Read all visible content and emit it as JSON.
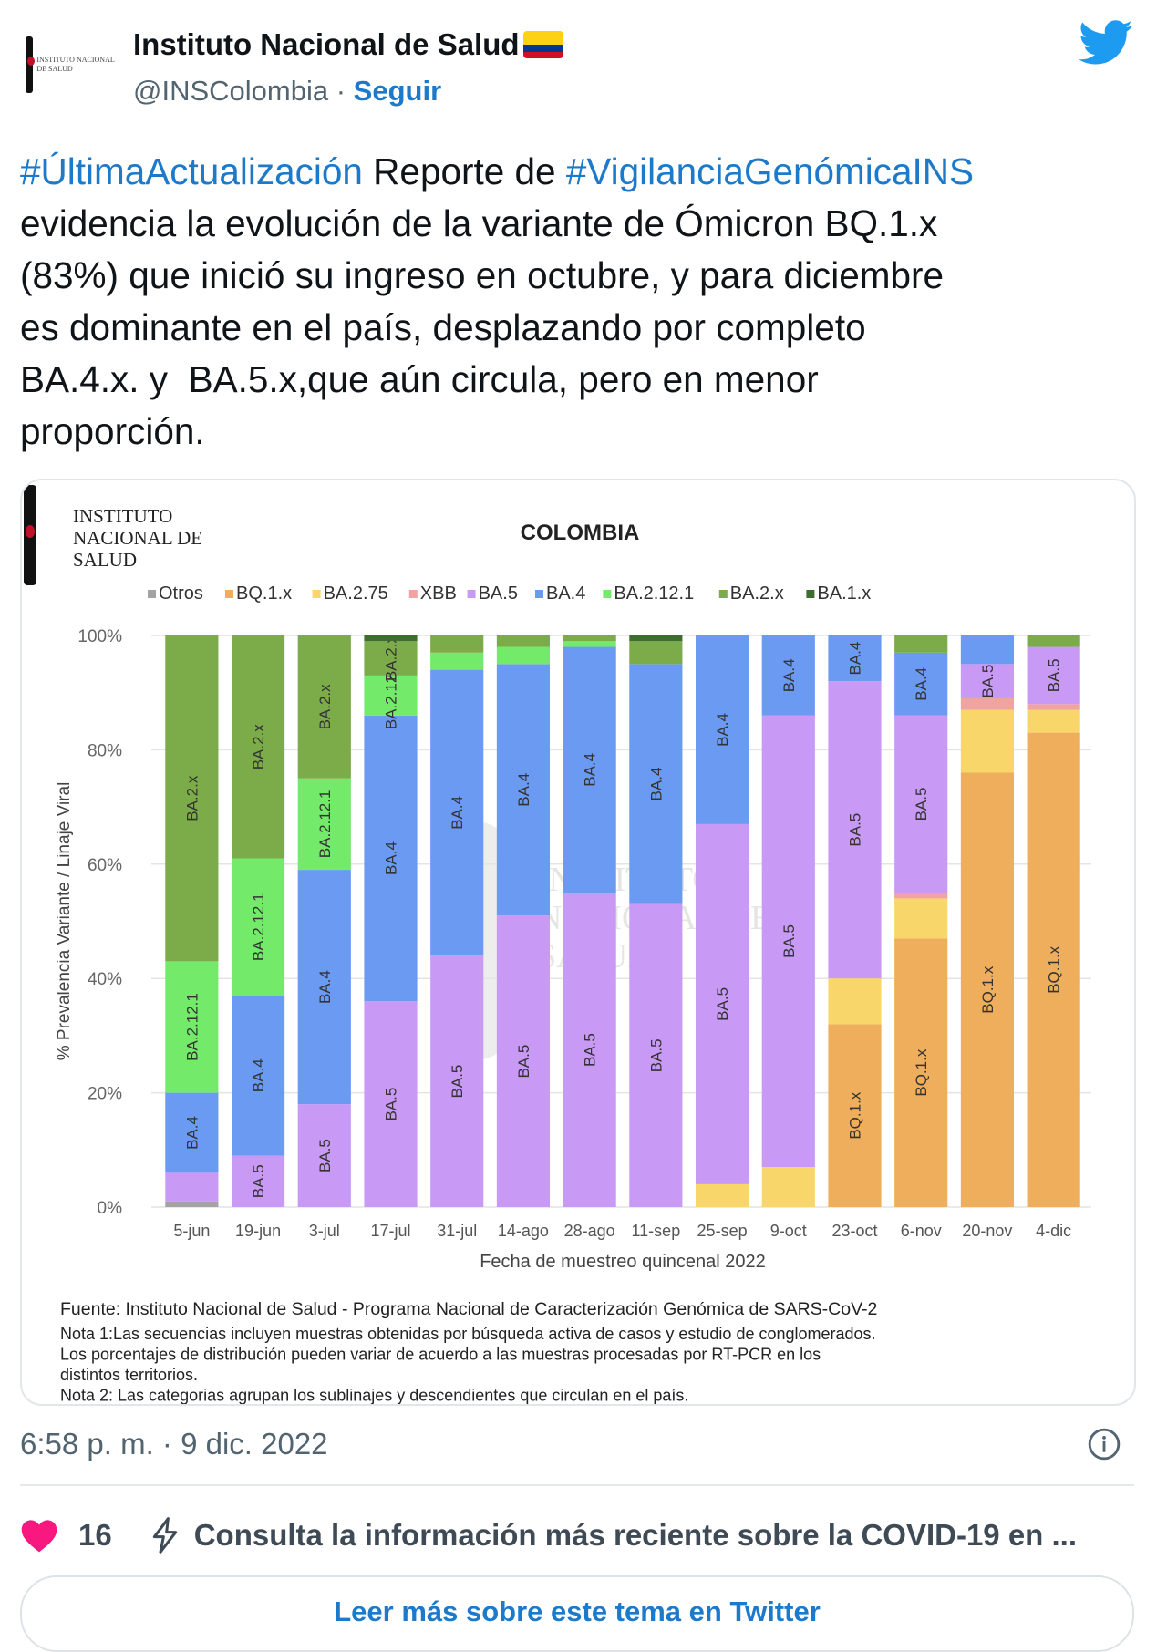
{
  "author": {
    "name": "Instituto Nacional de Salud",
    "handle": "@INSColombia",
    "separator": "·",
    "follow_label": "Seguir",
    "avatar_text": "INSTITUTO NACIONAL DE SALUD"
  },
  "tweet": {
    "lines": [
      [
        {
          "t": "#ÚltimaActualización",
          "h": true
        },
        {
          "t": " Reporte de ",
          "h": false
        },
        {
          "t": "#VigilanciaGenómicaINS",
          "h": true
        }
      ],
      [
        {
          "t": "evidencia la evolución de la variante de Ómicron BQ.1.x",
          "h": false
        }
      ],
      [
        {
          "t": "(83%) que inició su ingreso en octubre, y para diciembre",
          "h": false
        }
      ],
      [
        {
          "t": "es dominante en el país, desplazando por completo",
          "h": false
        }
      ],
      [
        {
          "t": "BA.4.x. y  BA.5.x,que aún circula, pero en menor",
          "h": false
        }
      ],
      [
        {
          "t": "proporción.",
          "h": false
        }
      ]
    ],
    "hashtag_color": "#1d79c9"
  },
  "chart_data": {
    "type": "bar",
    "stacked": true,
    "title": "COLOMBIA",
    "logo_text": [
      "INSTITUTO",
      "NACIONAL DE",
      "SALUD"
    ],
    "watermark_text": [
      "INSTITUTO",
      "NACIONAL DE",
      "SALUD"
    ],
    "xlabel": "Fecha de muestreo quincenal 2022",
    "ylabel": "% Prevalencia Variante / Linaje Viral",
    "ylim": [
      0,
      100
    ],
    "yticks": [
      "0%",
      "20%",
      "40%",
      "60%",
      "80%",
      "100%"
    ],
    "grid": true,
    "legend_position": "top",
    "categories": [
      "5-jun",
      "19-jun",
      "3-jul",
      "17-jul",
      "31-jul",
      "14-ago",
      "28-ago",
      "11-sep",
      "25-sep",
      "9-oct",
      "23-oct",
      "6-nov",
      "20-nov",
      "4-dic"
    ],
    "series": [
      {
        "name": "Otros",
        "color": "#a3a3a3",
        "values": [
          1,
          0,
          0,
          0,
          0,
          0,
          0,
          0,
          0,
          0,
          0,
          0,
          0,
          0
        ]
      },
      {
        "name": "BQ.1.x",
        "color": "#eeae5c",
        "values": [
          0,
          0,
          0,
          0,
          0,
          0,
          0,
          0,
          0,
          0,
          32,
          47,
          76,
          83
        ]
      },
      {
        "name": "BA.2.75",
        "color": "#f8d66a",
        "values": [
          0,
          0,
          0,
          0,
          0,
          0,
          0,
          0,
          4,
          7,
          8,
          7,
          11,
          4
        ]
      },
      {
        "name": "XBB",
        "color": "#f0a3a3",
        "values": [
          0,
          0,
          0,
          0,
          0,
          0,
          0,
          0,
          0,
          0,
          0,
          1,
          2,
          1
        ]
      },
      {
        "name": "BA.5",
        "color": "#c99af5",
        "values": [
          5,
          9,
          18,
          36,
          44,
          51,
          55,
          53,
          63,
          79,
          52,
          31,
          6,
          10
        ]
      },
      {
        "name": "BA.4",
        "color": "#6b9af2",
        "values": [
          14,
          28,
          41,
          50,
          50,
          44,
          43,
          42,
          33,
          14,
          8,
          11,
          5,
          0
        ]
      },
      {
        "name": "BA.2.12.1",
        "color": "#74ea6a",
        "values": [
          23,
          24,
          16,
          7,
          3,
          3,
          1,
          0,
          0,
          0,
          0,
          0,
          0,
          0
        ]
      },
      {
        "name": "BA.2.x",
        "color": "#7cac4a",
        "values": [
          57,
          39,
          25,
          6,
          3,
          2,
          1,
          4,
          0,
          0,
          0,
          3,
          0,
          2
        ]
      },
      {
        "name": "BA.1.x",
        "color": "#3e6e2e",
        "values": [
          0,
          0,
          0,
          1,
          0,
          0,
          0,
          1,
          0,
          0,
          0,
          0,
          0,
          0
        ]
      }
    ],
    "source": "Fuente: Instituto Nacional de Salud - Programa Nacional de Caracterización Genómica de SARS-CoV-2",
    "notes": [
      "Nota 1:Las secuencias incluyen muestras obtenidas por búsqueda activa de casos y estudio de conglomerados.",
      "Los porcentajes de distribución pueden variar de acuerdo a las muestras procesadas por RT-PCR en los",
      "distintos territorios.",
      "Nota 2: Las categorias agrupan los sublinajes y descendientes que circulan en el país."
    ]
  },
  "footer": {
    "timestamp": "6:58 p. m. · 9 dic. 2022",
    "like_count": "16",
    "covid_info": "Consulta la información más reciente sobre la COVID-19 en ...",
    "read_more": "Leer más sobre este tema en Twitter",
    "like_color": "#f91880",
    "icons": [
      "heart-icon",
      "lightning-icon",
      "info-icon",
      "twitter-bird-icon"
    ]
  }
}
